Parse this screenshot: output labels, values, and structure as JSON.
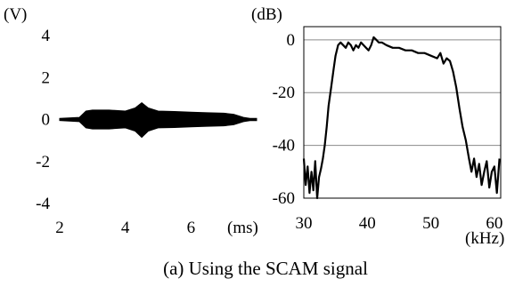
{
  "caption": "(a) Using the SCAM signal",
  "chart_data": [
    {
      "type": "area",
      "title": "",
      "ylabel": "(V)",
      "xlabel": "(ms)",
      "xlim": [
        2,
        8
      ],
      "ylim": [
        -4,
        4
      ],
      "xticks": [
        2,
        4,
        6
      ],
      "yticks": [
        4,
        2,
        0,
        -2,
        -4
      ],
      "grid": false,
      "envelope": {
        "x": [
          2.0,
          2.6,
          2.8,
          3.0,
          3.5,
          4.0,
          4.3,
          4.5,
          4.7,
          5.0,
          5.5,
          6.0,
          6.5,
          7.0,
          7.3,
          7.6,
          7.8,
          8.0
        ],
        "upper": [
          0.05,
          0.1,
          0.4,
          0.45,
          0.45,
          0.4,
          0.55,
          0.8,
          0.55,
          0.4,
          0.38,
          0.35,
          0.32,
          0.3,
          0.25,
          0.1,
          0.05,
          0.05
        ],
        "lower": [
          -0.05,
          -0.1,
          -0.4,
          -0.45,
          -0.45,
          -0.4,
          -0.55,
          -0.85,
          -0.55,
          -0.4,
          -0.38,
          -0.35,
          -0.32,
          -0.3,
          -0.25,
          -0.1,
          -0.05,
          -0.05
        ]
      }
    },
    {
      "type": "line",
      "title": "",
      "ylabel": "(dB)",
      "xlabel": "(kHz)",
      "xlim": [
        30,
        61
      ],
      "ylim": [
        -60,
        5
      ],
      "xticks": [
        30,
        40,
        50,
        60
      ],
      "yticks": [
        0,
        -20,
        -40,
        -60
      ],
      "grid": true,
      "series": [
        {
          "x": [
            30.0,
            30.3,
            30.6,
            30.9,
            31.2,
            31.5,
            31.8,
            32.1,
            32.4,
            32.7,
            33.0,
            33.3,
            33.6,
            33.9,
            34.3,
            34.7,
            35.0,
            35.4,
            35.8,
            36.2,
            36.6,
            37.0,
            37.4,
            37.8,
            38.2,
            38.6,
            39.0,
            39.4,
            39.8,
            40.2,
            40.6,
            41.0,
            41.4,
            41.8,
            42.3,
            43.0,
            44.0,
            45.0,
            46.0,
            47.0,
            48.0,
            49.0,
            50.0,
            51.0,
            51.5,
            52.0,
            52.5,
            53.0,
            53.5,
            54.0,
            54.5,
            55.0,
            55.5,
            56.0,
            56.4,
            56.8,
            57.2,
            57.6,
            58.0,
            58.4,
            58.8,
            59.2,
            59.6,
            60.0,
            60.4,
            60.8
          ],
          "y": [
            -45,
            -55,
            -48,
            -58,
            -50,
            -57,
            -46,
            -60,
            -52,
            -49,
            -45,
            -40,
            -33,
            -25,
            -18,
            -11,
            -6,
            -2,
            -1,
            -2,
            -3,
            -1,
            -2,
            -4,
            -2,
            -3,
            -1,
            -2,
            -3,
            -4,
            -2,
            1,
            0,
            -1,
            -1,
            -2,
            -3,
            -3,
            -4,
            -4,
            -5,
            -5,
            -6,
            -7,
            -5,
            -9,
            -7,
            -8,
            -12,
            -18,
            -26,
            -33,
            -38,
            -45,
            -50,
            -45,
            -52,
            -47,
            -55,
            -50,
            -46,
            -56,
            -50,
            -48,
            -58,
            -45
          ]
        }
      ]
    }
  ]
}
